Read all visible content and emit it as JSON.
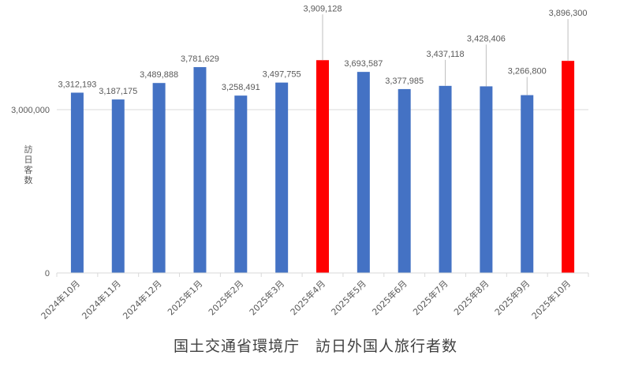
{
  "chart_data": {
    "type": "bar",
    "title": "国土交通省環境庁　訪日外国人旅行者数",
    "xlabel": "",
    "ylabel": "訪日客数",
    "categories": [
      "2024年10月",
      "2024年11月",
      "2024年12月",
      "2025年1月",
      "2025年2月",
      "2025年3月",
      "2025年4月",
      "2025年5月",
      "2025年6月",
      "2025年7月",
      "2025年8月",
      "2025年9月",
      "2025年10月"
    ],
    "values": [
      3312193,
      3187175,
      3489888,
      3781629,
      3258491,
      3497755,
      3909128,
      3693587,
      3377985,
      3437118,
      3428406,
      3266800,
      3896300
    ],
    "value_labels": [
      "3,312,193",
      "3,187,175",
      "3,489,888",
      "3,781,629",
      "3,258,491",
      "3,497,755",
      "3,909,128",
      "3,693,587",
      "3,377,985",
      "3,437,118",
      "3,428,406",
      "3,266,800",
      "3,896,300"
    ],
    "bar_colors": [
      "#4472C4",
      "#4472C4",
      "#4472C4",
      "#4472C4",
      "#4472C4",
      "#4472C4",
      "#FF0000",
      "#4472C4",
      "#4472C4",
      "#4472C4",
      "#4472C4",
      "#4472C4",
      "#FF0000"
    ],
    "label_leader_offsets": [
      0,
      0,
      0,
      0,
      0,
      0,
      55,
      0,
      0,
      30,
      50,
      20,
      50
    ],
    "yticks": [
      0,
      3000000
    ],
    "ytick_labels": [
      "0",
      "3,000,000"
    ],
    "ylim": [
      0,
      4000000
    ],
    "grid": true,
    "legend": null
  },
  "colors": {
    "primary_bar": "#4472C4",
    "highlight_bar": "#FF0000",
    "gridline": "#D9D9D9",
    "text": "#595959"
  }
}
